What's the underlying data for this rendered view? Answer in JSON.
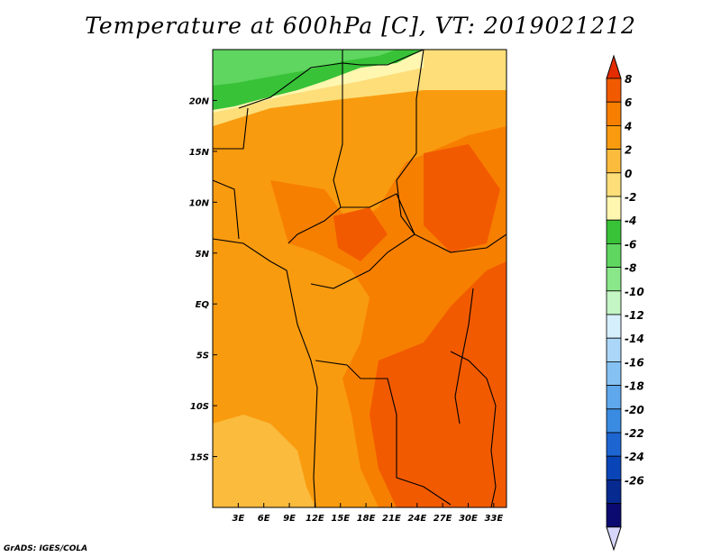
{
  "chart_data": {
    "type": "heatmap",
    "title": "Temperature at 600hPa [C], VT: 2019021212",
    "x_ticks": [
      "3E",
      "6E",
      "9E",
      "12E",
      "15E",
      "18E",
      "21E",
      "24E",
      "27E",
      "30E",
      "33E"
    ],
    "y_ticks": [
      "20N",
      "15N",
      "10N",
      "5N",
      "EQ",
      "5S",
      "10S",
      "15S"
    ],
    "xlim": [
      0,
      34.5
    ],
    "ylim": [
      -20,
      25
    ],
    "colorbar": {
      "levels": [
        8,
        6,
        4,
        2,
        0,
        -2,
        -4,
        -6,
        -8,
        -10,
        -12,
        -14,
        -16,
        -18,
        -20,
        -22,
        -24,
        -26
      ],
      "colors": [
        "#e32c00",
        "#f25a00",
        "#f77f00",
        "#f99b0f",
        "#fbbb3d",
        "#fdde79",
        "#fff6b0",
        "#38c238",
        "#5fd65f",
        "#8ae78a",
        "#c4f5c4",
        "#d6effc",
        "#abd6f8",
        "#85c2f3",
        "#5fa8ec",
        "#3a8ce2",
        "#1d66d2",
        "#0a45b8",
        "#062a8f",
        "#0a0a70",
        "#d6d6fa"
      ]
    },
    "regions": [
      {
        "name": "north-green",
        "level": -6
      },
      {
        "name": "north-yellow",
        "level": -2
      },
      {
        "name": "sahel-orange",
        "level": 2
      },
      {
        "name": "central-dark-orange",
        "level": 4
      },
      {
        "name": "east-red-orange",
        "level": 6
      }
    ]
  },
  "credit": "GrADS: IGES/COLA"
}
